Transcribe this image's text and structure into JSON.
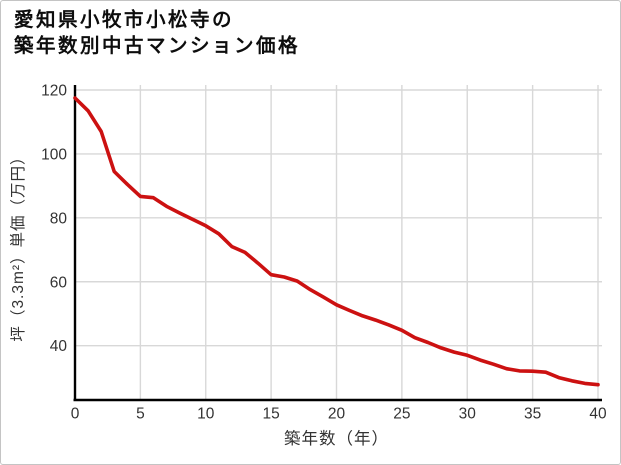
{
  "title": {
    "line1": "愛知県小牧市小松寺の",
    "line2": "築年数別中古マンション価格"
  },
  "colors": {
    "line": "#cc1111",
    "grid": "#d8d8d8",
    "axis": "#000000",
    "tick_text": "#333333",
    "title_text": "#0d0d0d",
    "border": "#c4c4c4",
    "background": "#ffffff"
  },
  "chart_data": {
    "type": "line",
    "title": "愛知県小牧市小松寺の築年数別中古マンション価格",
    "xlabel": "築年数（年）",
    "ylabel": "坪（3.3m²）単価（万円）",
    "series_name": "坪単価（万円）",
    "x": [
      0,
      1,
      2,
      3,
      4,
      5,
      6,
      7,
      8,
      9,
      10,
      11,
      12,
      13,
      14,
      15,
      16,
      17,
      18,
      19,
      20,
      21,
      22,
      23,
      24,
      25,
      26,
      27,
      28,
      29,
      30,
      31,
      32,
      33,
      34,
      35,
      36,
      37,
      38,
      39,
      40
    ],
    "values": [
      117.5,
      113.5,
      107.0,
      94.5,
      90.5,
      86.7,
      86.3,
      83.6,
      81.5,
      79.5,
      77.5,
      75.0,
      71.0,
      69.2,
      65.8,
      62.2,
      61.5,
      60.2,
      57.5,
      55.2,
      52.8,
      51.0,
      49.3,
      48.0,
      46.5,
      44.8,
      42.5,
      41.0,
      39.3,
      38.0,
      37.0,
      35.5,
      34.2,
      32.8,
      32.1,
      32.0,
      31.7,
      30.0,
      29.0,
      28.2,
      27.8
    ],
    "xlim": [
      0,
      40
    ],
    "ylim": [
      23,
      120
    ],
    "xticks": [
      0,
      5,
      10,
      15,
      20,
      25,
      30,
      35,
      40
    ],
    "yticks": [
      40,
      60,
      80,
      100,
      120
    ],
    "grid": true,
    "legend": false
  }
}
